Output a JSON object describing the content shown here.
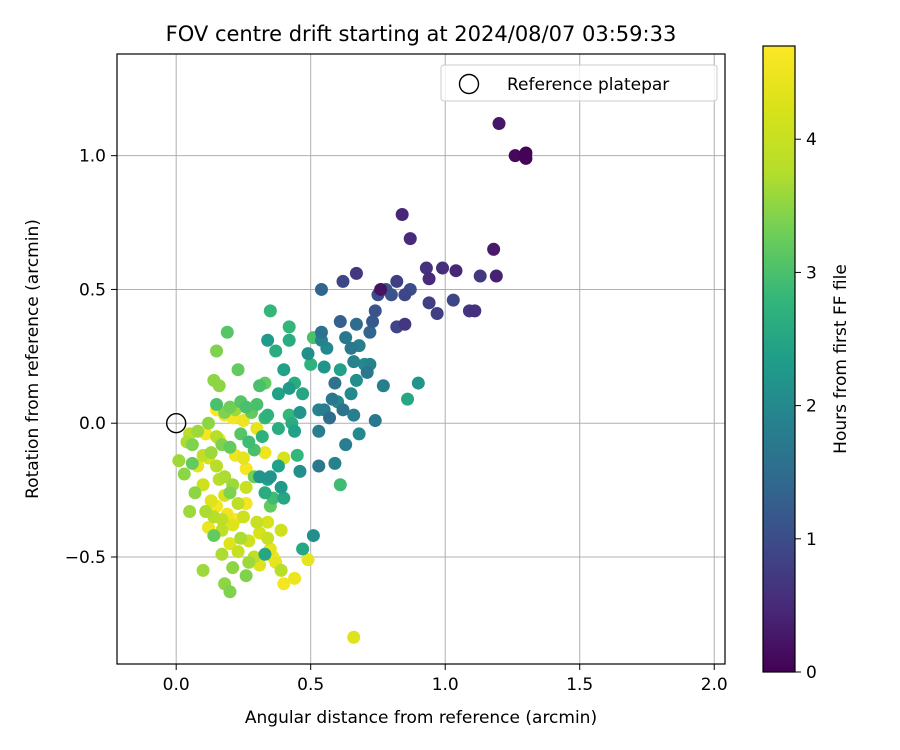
{
  "chart_data": {
    "type": "scatter",
    "title": "FOV centre drift starting at 2024/08/07 03:59:33",
    "xlabel": "Angular distance from reference (arcmin)",
    "ylabel": "Rotation from reference (arcmin)",
    "xlim": [
      -0.22,
      2.04
    ],
    "ylim": [
      -0.9,
      1.38
    ],
    "xticks": [
      0.0,
      0.5,
      1.0,
      1.5,
      2.0
    ],
    "xtick_labels": [
      "0.0",
      "0.5",
      "1.0",
      "1.5",
      "2.0"
    ],
    "yticks": [
      -0.5,
      0.0,
      0.5,
      1.0
    ],
    "ytick_labels": [
      "−0.5",
      "0.0",
      "0.5",
      "1.0"
    ],
    "grid": true,
    "legend": {
      "placement": "top-right",
      "entries": [
        {
          "label": "Reference platepar",
          "marker": "open-circle"
        }
      ]
    },
    "reference_point": {
      "x": 0.0,
      "y": 0.0
    },
    "colorbar": {
      "label": "Hours from first FF file",
      "range": [
        0,
        4.7
      ],
      "ticks": [
        0,
        1,
        2,
        3,
        4
      ],
      "tick_labels": [
        "0",
        "1",
        "2",
        "3",
        "4"
      ],
      "colormap": "viridis"
    },
    "points": [
      {
        "x": 1.3,
        "y": 1.01,
        "c": 0.03
      },
      {
        "x": 1.3,
        "y": 0.99,
        "c": 0.05
      },
      {
        "x": 1.26,
        "y": 1.0,
        "c": 0.08
      },
      {
        "x": 1.2,
        "y": 1.12,
        "c": 0.25
      },
      {
        "x": 0.76,
        "y": 0.5,
        "c": 0.2
      },
      {
        "x": 0.84,
        "y": 0.78,
        "c": 0.45
      },
      {
        "x": 0.87,
        "y": 0.69,
        "c": 0.5
      },
      {
        "x": 1.18,
        "y": 0.65,
        "c": 0.3
      },
      {
        "x": 0.93,
        "y": 0.58,
        "c": 0.6
      },
      {
        "x": 0.99,
        "y": 0.58,
        "c": 0.55
      },
      {
        "x": 1.04,
        "y": 0.57,
        "c": 0.45
      },
      {
        "x": 0.94,
        "y": 0.54,
        "c": 0.5
      },
      {
        "x": 1.13,
        "y": 0.55,
        "c": 0.7
      },
      {
        "x": 1.19,
        "y": 0.55,
        "c": 0.4
      },
      {
        "x": 0.67,
        "y": 0.56,
        "c": 0.7
      },
      {
        "x": 0.62,
        "y": 0.53,
        "c": 0.9
      },
      {
        "x": 0.82,
        "y": 0.53,
        "c": 0.8
      },
      {
        "x": 0.87,
        "y": 0.5,
        "c": 1.0
      },
      {
        "x": 0.85,
        "y": 0.48,
        "c": 0.9
      },
      {
        "x": 0.8,
        "y": 0.48,
        "c": 1.1
      },
      {
        "x": 0.78,
        "y": 0.5,
        "c": 1.1
      },
      {
        "x": 0.75,
        "y": 0.48,
        "c": 1.0
      },
      {
        "x": 0.94,
        "y": 0.45,
        "c": 0.8
      },
      {
        "x": 1.03,
        "y": 0.46,
        "c": 0.9
      },
      {
        "x": 1.09,
        "y": 0.42,
        "c": 0.7
      },
      {
        "x": 1.11,
        "y": 0.42,
        "c": 0.6
      },
      {
        "x": 0.97,
        "y": 0.41,
        "c": 0.8
      },
      {
        "x": 0.74,
        "y": 0.42,
        "c": 1.1
      },
      {
        "x": 0.73,
        "y": 0.38,
        "c": 1.2
      },
      {
        "x": 0.82,
        "y": 0.36,
        "c": 0.9
      },
      {
        "x": 0.85,
        "y": 0.37,
        "c": 0.7
      },
      {
        "x": 0.54,
        "y": 0.5,
        "c": 1.4
      },
      {
        "x": 0.61,
        "y": 0.38,
        "c": 1.3
      },
      {
        "x": 0.67,
        "y": 0.37,
        "c": 1.5
      },
      {
        "x": 0.72,
        "y": 0.34,
        "c": 1.4
      },
      {
        "x": 0.54,
        "y": 0.34,
        "c": 1.6
      },
      {
        "x": 0.54,
        "y": 0.31,
        "c": 1.9
      },
      {
        "x": 0.63,
        "y": 0.32,
        "c": 1.7
      },
      {
        "x": 0.68,
        "y": 0.29,
        "c": 1.8
      },
      {
        "x": 0.65,
        "y": 0.28,
        "c": 1.7
      },
      {
        "x": 0.56,
        "y": 0.28,
        "c": 2.0
      },
      {
        "x": 0.49,
        "y": 0.26,
        "c": 2.1
      },
      {
        "x": 0.66,
        "y": 0.23,
        "c": 1.9
      },
      {
        "x": 0.7,
        "y": 0.22,
        "c": 2.0
      },
      {
        "x": 0.72,
        "y": 0.22,
        "c": 1.9
      },
      {
        "x": 0.71,
        "y": 0.19,
        "c": 1.7
      },
      {
        "x": 0.55,
        "y": 0.21,
        "c": 2.2
      },
      {
        "x": 0.61,
        "y": 0.2,
        "c": 2.4
      },
      {
        "x": 0.59,
        "y": 0.15,
        "c": 1.6
      },
      {
        "x": 0.67,
        "y": 0.16,
        "c": 2.1
      },
      {
        "x": 0.77,
        "y": 0.14,
        "c": 1.8
      },
      {
        "x": 0.9,
        "y": 0.15,
        "c": 2.2
      },
      {
        "x": 0.65,
        "y": 0.11,
        "c": 2.0
      },
      {
        "x": 0.6,
        "y": 0.08,
        "c": 2.0
      },
      {
        "x": 0.53,
        "y": 0.05,
        "c": 1.9
      },
      {
        "x": 0.55,
        "y": 0.05,
        "c": 1.8
      },
      {
        "x": 0.58,
        "y": 0.09,
        "c": 1.7
      },
      {
        "x": 0.62,
        "y": 0.05,
        "c": 1.6
      },
      {
        "x": 0.57,
        "y": 0.02,
        "c": 1.5
      },
      {
        "x": 0.66,
        "y": 0.03,
        "c": 1.8
      },
      {
        "x": 0.74,
        "y": 0.01,
        "c": 1.7
      },
      {
        "x": 0.86,
        "y": 0.09,
        "c": 2.5
      },
      {
        "x": 0.53,
        "y": -0.03,
        "c": 1.8
      },
      {
        "x": 0.68,
        "y": -0.04,
        "c": 2.0
      },
      {
        "x": 0.63,
        "y": -0.08,
        "c": 1.8
      },
      {
        "x": 0.59,
        "y": -0.15,
        "c": 1.9
      },
      {
        "x": 0.53,
        "y": -0.16,
        "c": 1.7
      },
      {
        "x": 0.61,
        "y": -0.23,
        "c": 2.9
      },
      {
        "x": 0.51,
        "y": -0.42,
        "c": 2.1
      },
      {
        "x": 0.47,
        "y": -0.47,
        "c": 2.5
      },
      {
        "x": 0.35,
        "y": 0.42,
        "c": 2.8
      },
      {
        "x": 0.34,
        "y": 0.31,
        "c": 2.3
      },
      {
        "x": 0.42,
        "y": 0.36,
        "c": 2.8
      },
      {
        "x": 0.42,
        "y": 0.31,
        "c": 2.6
      },
      {
        "x": 0.51,
        "y": 0.32,
        "c": 3.0
      },
      {
        "x": 0.37,
        "y": 0.27,
        "c": 2.6
      },
      {
        "x": 0.4,
        "y": 0.2,
        "c": 2.4
      },
      {
        "x": 0.42,
        "y": 0.13,
        "c": 2.3
      },
      {
        "x": 0.44,
        "y": 0.15,
        "c": 2.6
      },
      {
        "x": 0.38,
        "y": 0.11,
        "c": 2.4
      },
      {
        "x": 0.31,
        "y": 0.14,
        "c": 3.0
      },
      {
        "x": 0.33,
        "y": 0.15,
        "c": 3.2
      },
      {
        "x": 0.47,
        "y": 0.11,
        "c": 2.5
      },
      {
        "x": 0.5,
        "y": 0.22,
        "c": 2.7
      },
      {
        "x": 0.46,
        "y": 0.04,
        "c": 2.2
      },
      {
        "x": 0.34,
        "y": 0.03,
        "c": 2.7
      },
      {
        "x": 0.42,
        "y": 0.03,
        "c": 2.8
      },
      {
        "x": 0.43,
        "y": 0.0,
        "c": 2.6
      },
      {
        "x": 0.38,
        "y": -0.02,
        "c": 2.6
      },
      {
        "x": 0.44,
        "y": -0.03,
        "c": 2.4
      },
      {
        "x": 0.45,
        "y": -0.12,
        "c": 2.8
      },
      {
        "x": 0.46,
        "y": -0.18,
        "c": 2.1
      },
      {
        "x": 0.38,
        "y": -0.16,
        "c": 2.4
      },
      {
        "x": 0.35,
        "y": -0.2,
        "c": 2.2
      },
      {
        "x": 0.34,
        "y": -0.21,
        "c": 2.4
      },
      {
        "x": 0.31,
        "y": -0.2,
        "c": 2.2
      },
      {
        "x": 0.39,
        "y": -0.24,
        "c": 2.3
      },
      {
        "x": 0.4,
        "y": -0.28,
        "c": 2.5
      },
      {
        "x": 0.36,
        "y": -0.28,
        "c": 2.9
      },
      {
        "x": 0.33,
        "y": -0.26,
        "c": 2.6
      },
      {
        "x": 0.35,
        "y": -0.31,
        "c": 3.2
      },
      {
        "x": 0.33,
        "y": -0.49,
        "c": 2.5
      },
      {
        "x": 0.19,
        "y": 0.34,
        "c": 3.1
      },
      {
        "x": 0.23,
        "y": 0.2,
        "c": 3.2
      },
      {
        "x": 0.15,
        "y": 0.27,
        "c": 3.4
      },
      {
        "x": 0.14,
        "y": 0.16,
        "c": 3.5
      },
      {
        "x": 0.16,
        "y": 0.14,
        "c": 3.5
      },
      {
        "x": 0.3,
        "y": 0.07,
        "c": 3.0
      },
      {
        "x": 0.2,
        "y": 0.06,
        "c": 3.3
      },
      {
        "x": 0.24,
        "y": 0.08,
        "c": 3.1
      },
      {
        "x": 0.26,
        "y": 0.06,
        "c": 3.0
      },
      {
        "x": 0.15,
        "y": 0.07,
        "c": 3.0
      },
      {
        "x": 0.18,
        "y": 0.04,
        "c": 3.4
      },
      {
        "x": 0.22,
        "y": 0.05,
        "c": 3.6
      },
      {
        "x": 0.28,
        "y": 0.04,
        "c": 3.2
      },
      {
        "x": 0.33,
        "y": 0.02,
        "c": 2.8
      },
      {
        "x": 0.12,
        "y": 0.0,
        "c": 3.5
      },
      {
        "x": 0.08,
        "y": -0.03,
        "c": 3.6
      },
      {
        "x": 0.05,
        "y": -0.04,
        "c": 3.8
      },
      {
        "x": 0.04,
        "y": -0.07,
        "c": 3.7
      },
      {
        "x": 0.06,
        "y": -0.08,
        "c": 3.4
      },
      {
        "x": 0.15,
        "y": -0.05,
        "c": 3.8
      },
      {
        "x": 0.17,
        "y": -0.08,
        "c": 3.4
      },
      {
        "x": 0.13,
        "y": -0.11,
        "c": 3.6
      },
      {
        "x": 0.1,
        "y": -0.12,
        "c": 3.9
      },
      {
        "x": 0.2,
        "y": -0.09,
        "c": 3.2
      },
      {
        "x": 0.24,
        "y": -0.04,
        "c": 3.1
      },
      {
        "x": 0.27,
        "y": -0.07,
        "c": 2.9
      },
      {
        "x": 0.29,
        "y": -0.1,
        "c": 3.0
      },
      {
        "x": 0.32,
        "y": -0.05,
        "c": 2.7
      },
      {
        "x": 0.01,
        "y": -0.14,
        "c": 3.6
      },
      {
        "x": 0.03,
        "y": -0.19,
        "c": 3.5
      },
      {
        "x": 0.06,
        "y": -0.15,
        "c": 3.2
      },
      {
        "x": 0.08,
        "y": -0.16,
        "c": 4.4
      },
      {
        "x": 0.12,
        "y": -0.13,
        "c": 4.2
      },
      {
        "x": 0.15,
        "y": -0.16,
        "c": 3.8
      },
      {
        "x": 0.18,
        "y": -0.2,
        "c": 3.7
      },
      {
        "x": 0.21,
        "y": -0.23,
        "c": 3.6
      },
      {
        "x": 0.07,
        "y": -0.26,
        "c": 3.5
      },
      {
        "x": 0.1,
        "y": -0.23,
        "c": 4.1
      },
      {
        "x": 0.13,
        "y": -0.29,
        "c": 4.3
      },
      {
        "x": 0.16,
        "y": -0.21,
        "c": 3.8
      },
      {
        "x": 0.2,
        "y": -0.26,
        "c": 3.4
      },
      {
        "x": 0.23,
        "y": -0.3,
        "c": 3.9
      },
      {
        "x": 0.26,
        "y": -0.24,
        "c": 4.0
      },
      {
        "x": 0.29,
        "y": -0.2,
        "c": 3.3
      },
      {
        "x": 0.05,
        "y": -0.33,
        "c": 3.6
      },
      {
        "x": 0.11,
        "y": -0.33,
        "c": 3.7
      },
      {
        "x": 0.14,
        "y": -0.35,
        "c": 3.8
      },
      {
        "x": 0.17,
        "y": -0.36,
        "c": 3.9
      },
      {
        "x": 0.21,
        "y": -0.38,
        "c": 4.3
      },
      {
        "x": 0.25,
        "y": -0.35,
        "c": 4.1
      },
      {
        "x": 0.3,
        "y": -0.37,
        "c": 4.0
      },
      {
        "x": 0.14,
        "y": -0.42,
        "c": 3.2
      },
      {
        "x": 0.17,
        "y": -0.4,
        "c": 3.9
      },
      {
        "x": 0.2,
        "y": -0.45,
        "c": 4.3
      },
      {
        "x": 0.24,
        "y": -0.43,
        "c": 3.7
      },
      {
        "x": 0.31,
        "y": -0.41,
        "c": 4.2
      },
      {
        "x": 0.34,
        "y": -0.43,
        "c": 4.0
      },
      {
        "x": 0.36,
        "y": -0.5,
        "c": 4.5
      },
      {
        "x": 0.37,
        "y": -0.52,
        "c": 4.4
      },
      {
        "x": 0.39,
        "y": -0.55,
        "c": 3.8
      },
      {
        "x": 0.31,
        "y": -0.53,
        "c": 4.3
      },
      {
        "x": 0.35,
        "y": -0.47,
        "c": 4.4
      },
      {
        "x": 0.29,
        "y": -0.5,
        "c": 3.9
      },
      {
        "x": 0.1,
        "y": -0.55,
        "c": 3.6
      },
      {
        "x": 0.21,
        "y": -0.54,
        "c": 3.5
      },
      {
        "x": 0.26,
        "y": -0.57,
        "c": 3.4
      },
      {
        "x": 0.18,
        "y": -0.6,
        "c": 3.5
      },
      {
        "x": 0.2,
        "y": -0.63,
        "c": 3.4
      },
      {
        "x": 0.4,
        "y": -0.6,
        "c": 4.6
      },
      {
        "x": 0.44,
        "y": -0.58,
        "c": 4.5
      },
      {
        "x": 0.49,
        "y": -0.51,
        "c": 4.4
      },
      {
        "x": 0.66,
        "y": -0.8,
        "c": 4.3
      },
      {
        "x": 0.15,
        "y": 0.05,
        "c": 4.7
      },
      {
        "x": 0.18,
        "y": 0.03,
        "c": 4.6
      },
      {
        "x": 0.21,
        "y": 0.02,
        "c": 4.6
      },
      {
        "x": 0.25,
        "y": 0.01,
        "c": 4.5
      },
      {
        "x": 0.11,
        "y": -0.04,
        "c": 4.6
      },
      {
        "x": 0.16,
        "y": -0.06,
        "c": 4.5
      },
      {
        "x": 0.22,
        "y": -0.12,
        "c": 4.5
      },
      {
        "x": 0.25,
        "y": -0.13,
        "c": 4.4
      },
      {
        "x": 0.3,
        "y": -0.02,
        "c": 4.4
      },
      {
        "x": 0.26,
        "y": -0.17,
        "c": 4.6
      },
      {
        "x": 0.15,
        "y": -0.31,
        "c": 4.6
      },
      {
        "x": 0.19,
        "y": -0.34,
        "c": 4.5
      },
      {
        "x": 0.22,
        "y": -0.36,
        "c": 4.7
      },
      {
        "x": 0.12,
        "y": -0.39,
        "c": 4.5
      },
      {
        "x": 0.18,
        "y": -0.27,
        "c": 4.2
      },
      {
        "x": 0.26,
        "y": -0.3,
        "c": 4.6
      },
      {
        "x": 0.33,
        "y": -0.11,
        "c": 4.5
      },
      {
        "x": 0.4,
        "y": -0.13,
        "c": 4.2
      },
      {
        "x": 0.27,
        "y": -0.44,
        "c": 4.1
      },
      {
        "x": 0.39,
        "y": -0.4,
        "c": 4.1
      },
      {
        "x": 0.34,
        "y": -0.37,
        "c": 4.2
      },
      {
        "x": 0.23,
        "y": -0.48,
        "c": 4.0
      },
      {
        "x": 0.17,
        "y": -0.49,
        "c": 3.7
      },
      {
        "x": 0.27,
        "y": -0.52,
        "c": 3.6
      }
    ]
  }
}
